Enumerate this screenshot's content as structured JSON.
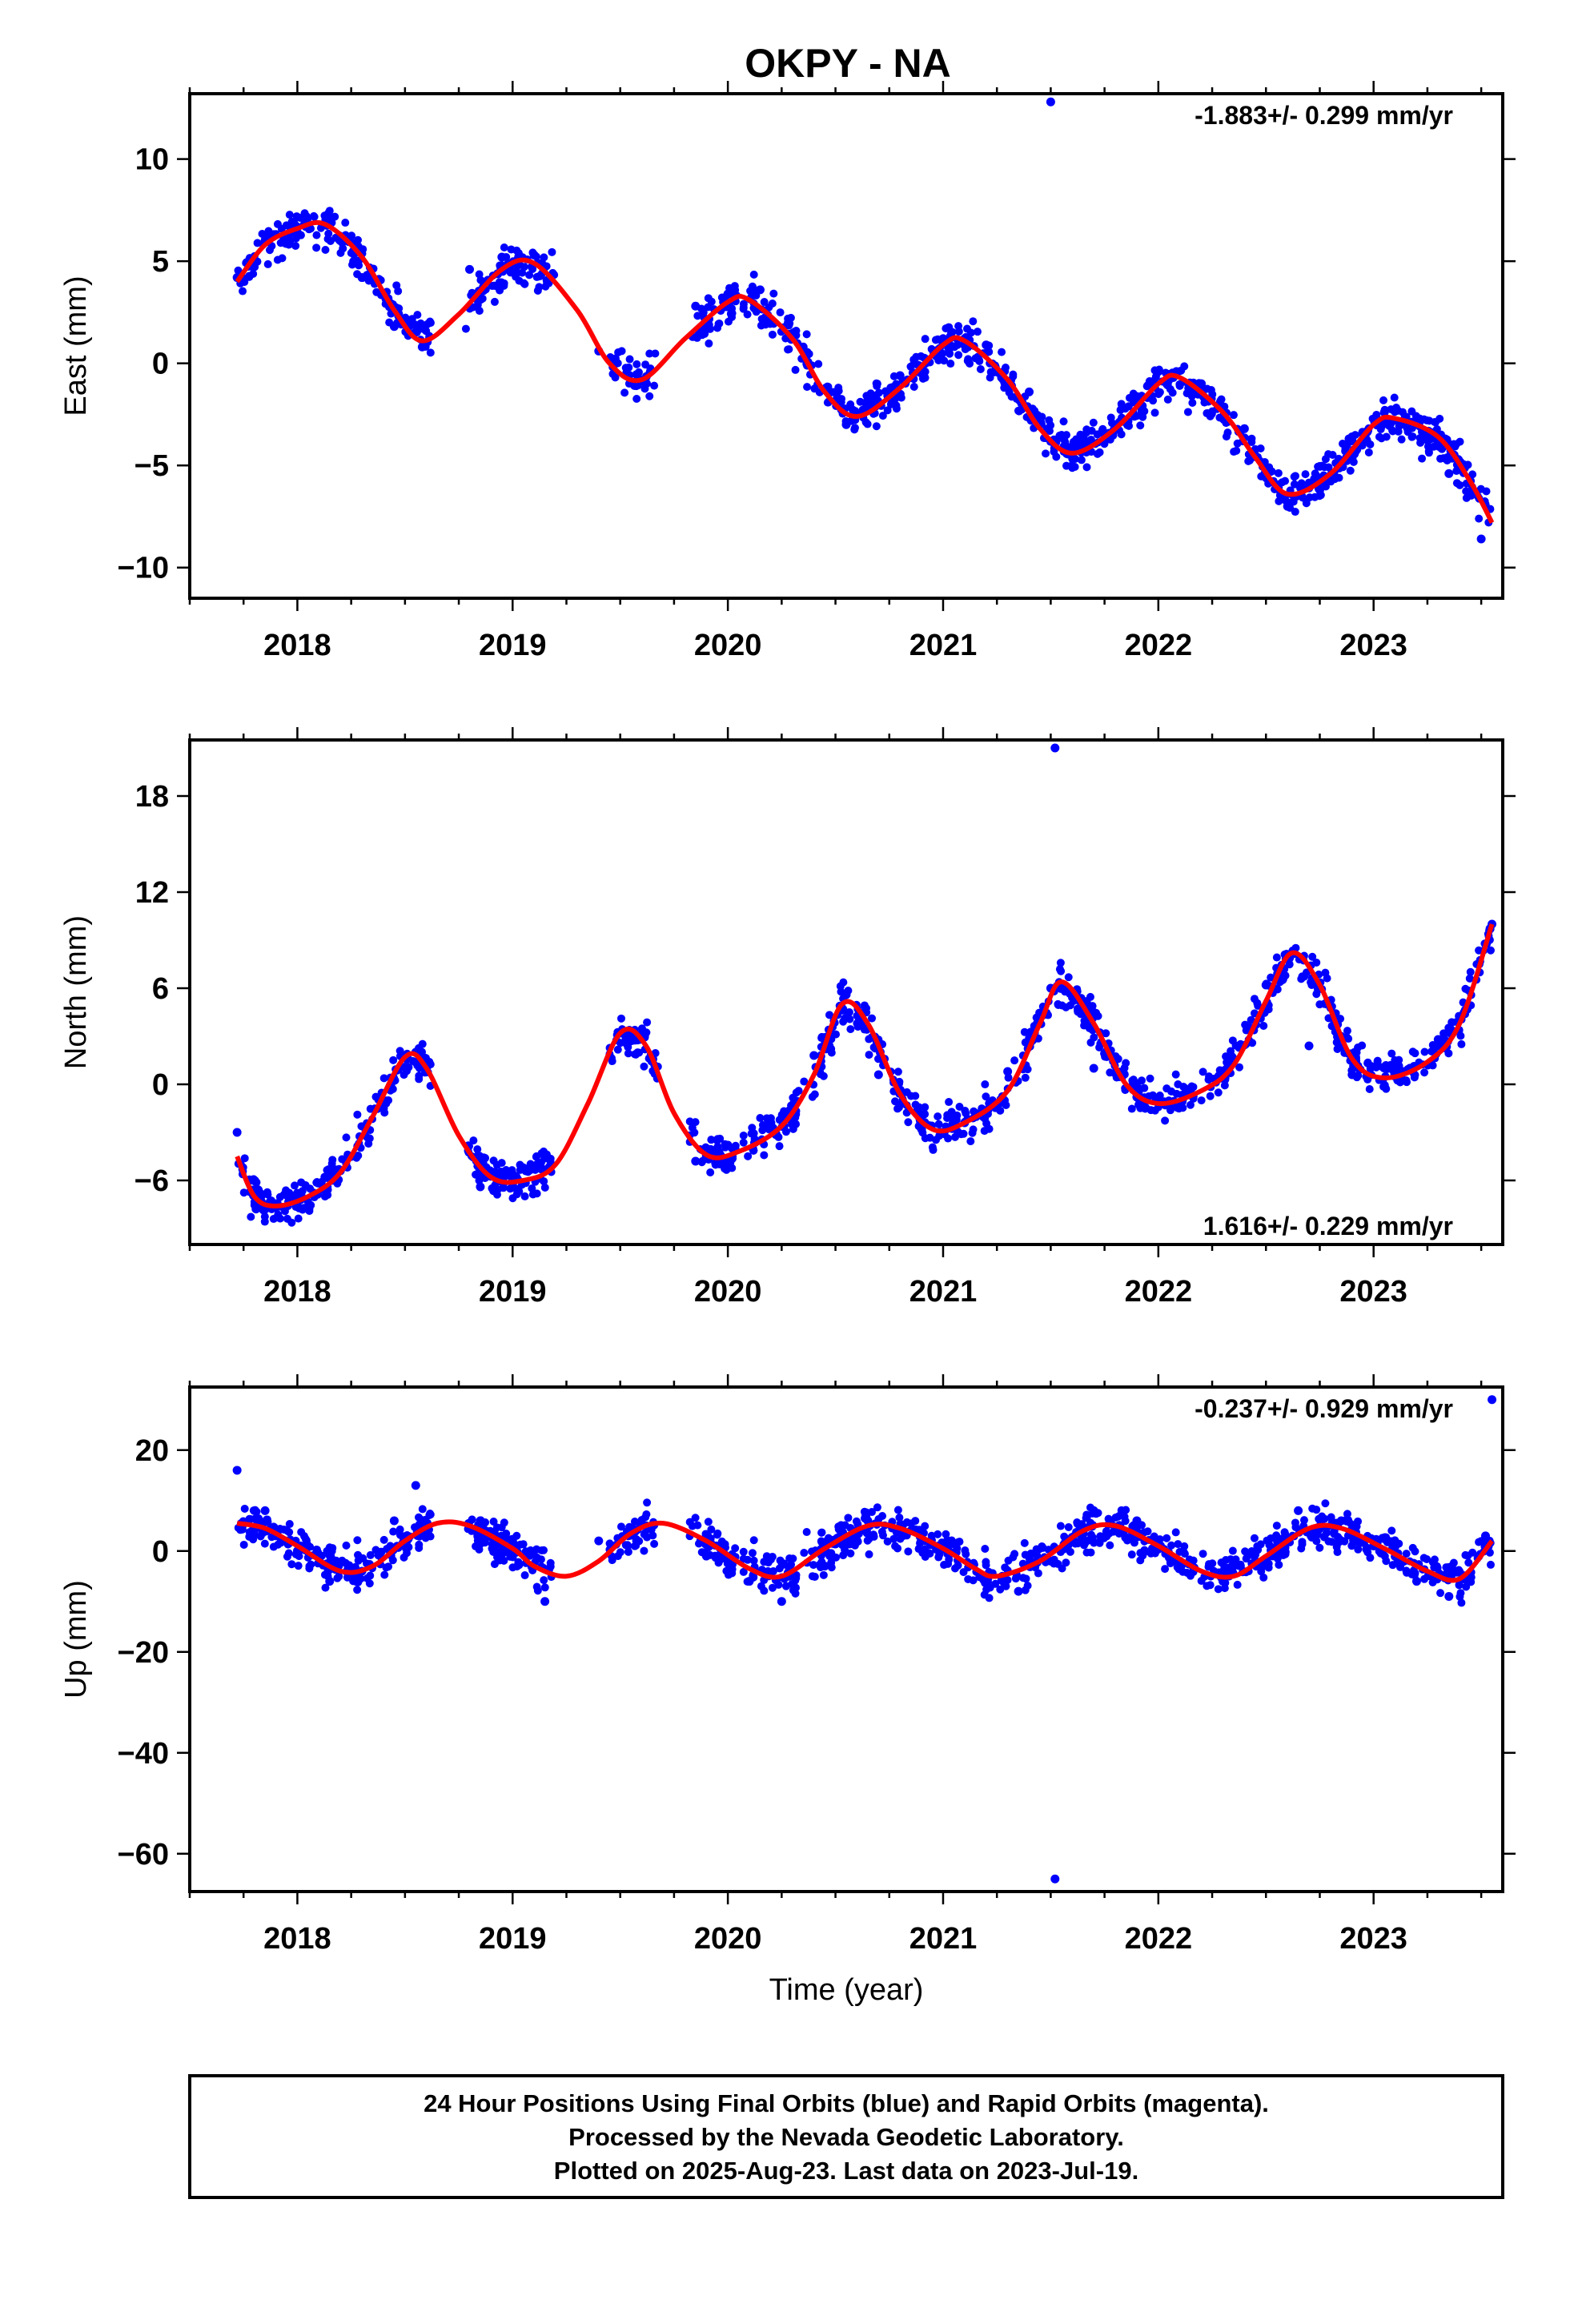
{
  "title": "OKPY - NA",
  "colors": {
    "points": "#0000ff",
    "fit": "#ff0000",
    "frame": "#000000"
  },
  "footer": {
    "line1": "24 Hour Positions Using Final Orbits (blue) and Rapid Orbits (magenta).",
    "line2": "Processed by the Nevada Geodetic Laboratory.",
    "line3": "Plotted on 2025-Aug-23. Last data on 2023-Jul-19."
  },
  "chart_data": [
    {
      "type": "scatter",
      "ylabel": "East (mm)",
      "xlabel": "",
      "rate_label": "-1.883+/- 0.299 mm/yr",
      "rate_position": "top-right",
      "xlim": [
        2017.5,
        2023.6
      ],
      "ylim": [
        -11.5,
        13.2
      ],
      "xticks": [
        "2018",
        "2019",
        "2020",
        "2021",
        "2022",
        "2023"
      ],
      "yticks": [
        "10",
        "5",
        "0",
        "−5",
        "−10"
      ],
      "ytick_values": [
        10,
        5,
        0,
        -5,
        -10
      ],
      "grid": false,
      "series": [
        {
          "kind": "scatter",
          "note": "daily positions",
          "x": [
            2017.72,
            2017.85,
            2018.0,
            2018.15,
            2018.3,
            2018.45,
            2018.58,
            2018.8,
            2018.95,
            2019.1,
            2019.4,
            2019.58,
            2019.85,
            2020.0,
            2020.15,
            2020.35,
            2020.55,
            2020.65,
            2020.8,
            2021.0,
            2021.2,
            2021.4,
            2021.5,
            2021.6,
            2021.8,
            2022.0,
            2022.2,
            2022.4,
            2022.6,
            2022.75,
            2022.9,
            2023.05,
            2023.2,
            2023.35,
            2023.5
          ],
          "y": [
            4.2,
            6.0,
            6.4,
            6.8,
            4.2,
            1.8,
            0.8,
            4.6,
            5.2,
            5.3,
            0.6,
            -0.6,
            2.8,
            3.4,
            3.6,
            0.8,
            -3.0,
            -2.2,
            -0.6,
            1.2,
            0.9,
            -1.4,
            12.8,
            -4.2,
            -3.0,
            -0.4,
            -1.0,
            -3.2,
            -7.0,
            -6.2,
            -3.6,
            -2.4,
            -2.8,
            -5.4,
            -8.6
          ]
        },
        {
          "kind": "line",
          "note": "fitted model",
          "x": [
            2017.72,
            2017.85,
            2018.0,
            2018.13,
            2018.3,
            2018.45,
            2018.58,
            2018.75,
            2018.95,
            2019.1,
            2019.3,
            2019.45,
            2019.6,
            2019.8,
            2020.0,
            2020.1,
            2020.3,
            2020.45,
            2020.6,
            2020.8,
            2021.0,
            2021.1,
            2021.3,
            2021.45,
            2021.6,
            2021.8,
            2022.0,
            2022.1,
            2022.3,
            2022.45,
            2022.6,
            2022.8,
            2023.0,
            2023.1,
            2023.3,
            2023.45,
            2023.55
          ],
          "y": [
            4.0,
            5.8,
            6.6,
            6.8,
            5.2,
            2.6,
            1.1,
            2.4,
            4.6,
            4.9,
            2.6,
            0.0,
            -0.8,
            1.2,
            3.0,
            3.1,
            1.2,
            -1.4,
            -2.6,
            -1.2,
            0.9,
            1.1,
            -0.8,
            -3.2,
            -4.4,
            -3.2,
            -1.0,
            -0.7,
            -2.4,
            -4.6,
            -6.4,
            -5.4,
            -3.0,
            -2.7,
            -3.6,
            -5.8,
            -7.8
          ]
        }
      ]
    },
    {
      "type": "scatter",
      "ylabel": "North (mm)",
      "xlabel": "",
      "rate_label": "1.616+/- 0.229 mm/yr",
      "rate_position": "bottom-right",
      "xlim": [
        2017.5,
        2023.6
      ],
      "ylim": [
        -10,
        21.5
      ],
      "xticks": [
        "2018",
        "2019",
        "2020",
        "2021",
        "2022",
        "2023"
      ],
      "yticks": [
        "18",
        "12",
        "6",
        "0",
        "−6"
      ],
      "ytick_values": [
        18,
        12,
        6,
        0,
        -6
      ],
      "grid": false,
      "series": [
        {
          "kind": "scatter",
          "note": "daily positions",
          "x": [
            2017.72,
            2017.85,
            2018.0,
            2018.2,
            2018.4,
            2018.55,
            2018.85,
            2019.0,
            2019.15,
            2019.5,
            2019.85,
            2020.0,
            2020.2,
            2020.4,
            2020.55,
            2020.7,
            2020.9,
            2021.1,
            2021.3,
            2021.5,
            2021.52,
            2021.7,
            2021.9,
            2022.1,
            2022.3,
            2022.5,
            2022.7,
            2022.9,
            2023.1,
            2023.3,
            2023.55
          ],
          "y": [
            -3.0,
            -7.8,
            -6.8,
            -5.4,
            -1.5,
            2.0,
            -6.4,
            -6.2,
            -4.6,
            3.2,
            -4.8,
            -3.8,
            -2.4,
            1.8,
            5.6,
            0.6,
            -2.8,
            -2.4,
            0.8,
            6.0,
            21.0,
            1.0,
            -0.8,
            -1.4,
            0.4,
            6.2,
            2.4,
            0.6,
            1.2,
            2.8,
            10.0
          ]
        },
        {
          "kind": "line",
          "note": "fitted model",
          "x": [
            2017.72,
            2017.8,
            2017.9,
            2018.05,
            2018.2,
            2018.35,
            2018.5,
            2018.6,
            2018.75,
            2018.9,
            2019.05,
            2019.2,
            2019.35,
            2019.5,
            2019.62,
            2019.75,
            2019.9,
            2020.05,
            2020.25,
            2020.4,
            2020.53,
            2020.65,
            2020.8,
            2020.95,
            2021.1,
            2021.3,
            2021.45,
            2021.55,
            2021.7,
            2021.85,
            2022.0,
            2022.2,
            2022.35,
            2022.5,
            2022.62,
            2022.75,
            2022.9,
            2023.05,
            2023.25,
            2023.4,
            2023.55
          ],
          "y": [
            -4.5,
            -7.0,
            -7.6,
            -7.0,
            -5.5,
            -2.0,
            1.7,
            1.0,
            -3.2,
            -5.8,
            -6.0,
            -5.0,
            -1.2,
            3.2,
            2.4,
            -1.8,
            -4.4,
            -4.2,
            -2.6,
            0.6,
            5.0,
            3.8,
            -0.6,
            -2.8,
            -2.4,
            -0.4,
            3.8,
            6.4,
            3.8,
            0.0,
            -1.2,
            -0.4,
            1.2,
            5.2,
            8.2,
            6.2,
            1.6,
            0.4,
            1.4,
            3.8,
            10.0
          ]
        }
      ]
    },
    {
      "type": "scatter",
      "ylabel": "Up (mm)",
      "xlabel": "Time (year)",
      "rate_label": "-0.237+/- 0.929 mm/yr",
      "rate_position": "top-right",
      "xlim": [
        2017.5,
        2023.6
      ],
      "ylim": [
        -67.5,
        32.5
      ],
      "xticks": [
        "2018",
        "2019",
        "2020",
        "2021",
        "2022",
        "2023"
      ],
      "yticks": [
        "20",
        "0",
        "−20",
        "−40",
        "−60"
      ],
      "ytick_values": [
        20,
        0,
        -20,
        -40,
        -60
      ],
      "grid": false,
      "series": [
        {
          "kind": "scatter",
          "note": "daily positions",
          "x": [
            2017.72,
            2017.85,
            2018.0,
            2018.15,
            2018.3,
            2018.45,
            2018.55,
            2018.85,
            2019.0,
            2019.15,
            2019.4,
            2019.62,
            2019.9,
            2020.1,
            2020.25,
            2020.45,
            2020.65,
            2020.85,
            2021.0,
            2021.2,
            2021.35,
            2021.5,
            2021.52,
            2021.7,
            2021.9,
            2022.1,
            2022.3,
            2022.45,
            2022.65,
            2022.85,
            2023.0,
            2023.2,
            2023.35,
            2023.52,
            2023.55
          ],
          "y": [
            16.0,
            8.0,
            0.0,
            -6.0,
            -4.0,
            6.0,
            13.0,
            6.0,
            2.0,
            -10.0,
            2.0,
            5.0,
            -1.0,
            -6.0,
            -10.0,
            -3.0,
            6.0,
            4.0,
            1.0,
            -6.0,
            -8.0,
            -2.0,
            -65.0,
            8.0,
            6.0,
            -2.0,
            -6.0,
            -2.0,
            8.0,
            6.0,
            1.0,
            -6.0,
            -9.0,
            3.0,
            30.0
          ]
        },
        {
          "kind": "line",
          "note": "fitted model",
          "x": [
            2017.72,
            2017.85,
            2018.0,
            2018.2,
            2018.35,
            2018.5,
            2018.65,
            2018.8,
            2019.0,
            2019.1,
            2019.25,
            2019.4,
            2019.55,
            2019.7,
            2019.9,
            2020.1,
            2020.25,
            2020.45,
            2020.65,
            2020.8,
            2021.0,
            2021.15,
            2021.25,
            2021.45,
            2021.65,
            2021.8,
            2022.0,
            2022.2,
            2022.35,
            2022.5,
            2022.7,
            2022.85,
            2023.05,
            2023.25,
            2023.4,
            2023.55
          ],
          "y": [
            5.5,
            4.5,
            1.0,
            -4.0,
            -3.0,
            2.0,
            5.5,
            5.0,
            0.5,
            -3.0,
            -5.0,
            -2.0,
            3.5,
            5.5,
            2.0,
            -3.5,
            -5.0,
            0.5,
            5.0,
            4.5,
            0.5,
            -3.5,
            -5.0,
            -2.0,
            4.0,
            5.0,
            1.0,
            -4.0,
            -5.0,
            -1.0,
            4.5,
            4.5,
            0.5,
            -4.0,
            -5.5,
            2.0
          ]
        }
      ]
    }
  ]
}
